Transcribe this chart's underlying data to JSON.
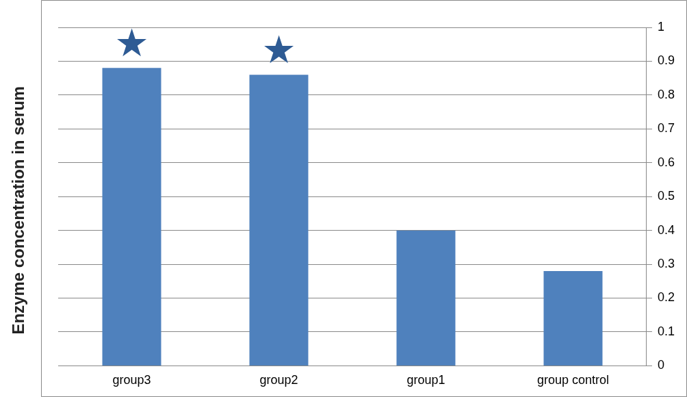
{
  "chart_data": {
    "type": "bar",
    "ylabel": "Enzyme concentration in serum",
    "categories": [
      "group3",
      "group2",
      "group1",
      "group control"
    ],
    "values": [
      0.88,
      0.86,
      0.4,
      0.28
    ],
    "color": "#4f81bd",
    "ylim": [
      0,
      1
    ],
    "yticks": [
      0,
      0.1,
      0.2,
      0.3,
      0.4,
      0.5,
      0.6,
      0.7,
      0.8,
      0.9,
      1
    ],
    "grid": "y",
    "annotations": [
      "★",
      "★"
    ]
  }
}
